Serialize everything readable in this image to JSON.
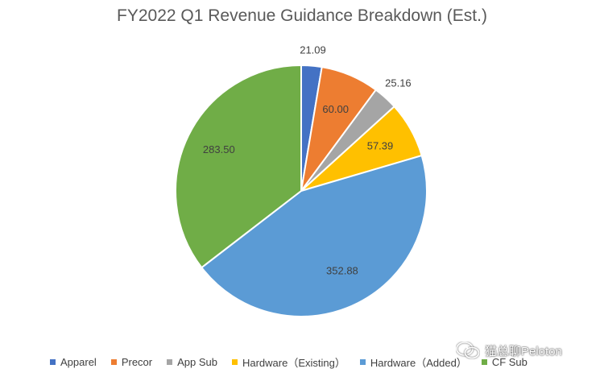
{
  "chart_data": {
    "type": "pie",
    "title": "FY2022 Q1 Revenue Guidance Breakdown (Est.)",
    "slices": [
      {
        "label": "Apparel",
        "value": 21.09,
        "value_label": "21.09",
        "color": "#4472C4"
      },
      {
        "label": "Precor",
        "value": 60.0,
        "value_label": "60.00",
        "color": "#ED7D31"
      },
      {
        "label": "App Sub",
        "value": 25.16,
        "value_label": "25.16",
        "color": "#A5A5A5"
      },
      {
        "label": "Hardware（Existing）",
        "value": 57.39,
        "value_label": "57.39",
        "color": "#FFC000"
      },
      {
        "label": "Hardware（Added）",
        "value": 352.88,
        "value_label": "352.88",
        "color": "#5B9BD5"
      },
      {
        "label": "CF Sub",
        "value": 283.5,
        "value_label": "283.50",
        "color": "#70AD47"
      }
    ],
    "legend_position": "bottom"
  },
  "watermark": {
    "text": "猫总聊Peloton",
    "icon": "wechat-icon"
  }
}
